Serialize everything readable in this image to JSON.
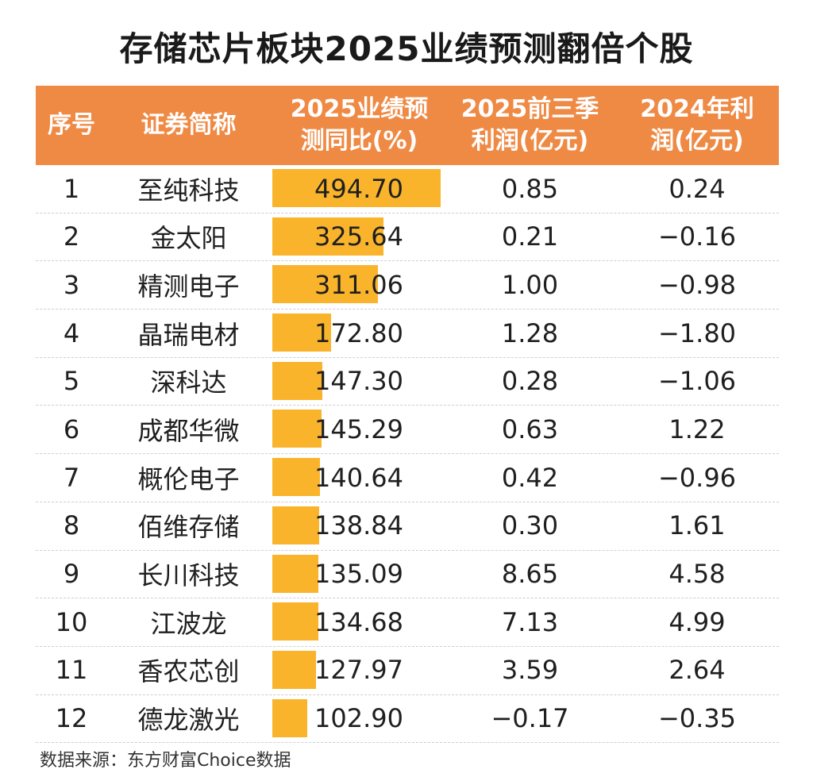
{
  "title": "存储芯片板块2025业绩预测翻倍个股",
  "header": {
    "col1": "序号",
    "col2": "证券简称",
    "col3_line1": "2025业绩预",
    "col3_line2": "测同比(%)",
    "col4_line1": "2025前三季",
    "col4_line2": "利润(亿元)",
    "col5_line1": "2024年利",
    "col5_line2": "润(亿元)"
  },
  "colors": {
    "header_bg": "#ef8a45",
    "bar": "#f9b42c"
  },
  "chart_data": {
    "type": "table",
    "columns": [
      "序号",
      "证券简称",
      "2025业绩预测同比(%)",
      "2025前三季利润(亿元)",
      "2024年利润(亿元)"
    ],
    "rows": [
      {
        "idx": "1",
        "name": "至纯科技",
        "yoy": "494.70",
        "yoy_value": 494.7,
        "q3_2025": "0.85",
        "profit_2024": "0.24"
      },
      {
        "idx": "2",
        "name": "金太阳",
        "yoy": "325.64",
        "yoy_value": 325.64,
        "q3_2025": "0.21",
        "profit_2024": "−0.16"
      },
      {
        "idx": "3",
        "name": "精测电子",
        "yoy": "311.06",
        "yoy_value": 311.06,
        "q3_2025": "1.00",
        "profit_2024": "−0.98"
      },
      {
        "idx": "4",
        "name": "晶瑞电材",
        "yoy": "172.80",
        "yoy_value": 172.8,
        "q3_2025": "1.28",
        "profit_2024": "−1.80"
      },
      {
        "idx": "5",
        "name": "深科达",
        "yoy": "147.30",
        "yoy_value": 147.3,
        "q3_2025": "0.28",
        "profit_2024": "−1.06"
      },
      {
        "idx": "6",
        "name": "成都华微",
        "yoy": "145.29",
        "yoy_value": 145.29,
        "q3_2025": "0.63",
        "profit_2024": "1.22"
      },
      {
        "idx": "7",
        "name": "概伦电子",
        "yoy": "140.64",
        "yoy_value": 140.64,
        "q3_2025": "0.42",
        "profit_2024": "−0.96"
      },
      {
        "idx": "8",
        "name": "佰维存储",
        "yoy": "138.84",
        "yoy_value": 138.84,
        "q3_2025": "0.30",
        "profit_2024": "1.61"
      },
      {
        "idx": "9",
        "name": "长川科技",
        "yoy": "135.09",
        "yoy_value": 135.09,
        "q3_2025": "8.65",
        "profit_2024": "4.58"
      },
      {
        "idx": "10",
        "name": "江波龙",
        "yoy": "134.68",
        "yoy_value": 134.68,
        "q3_2025": "7.13",
        "profit_2024": "4.99"
      },
      {
        "idx": "11",
        "name": "香农芯创",
        "yoy": "127.97",
        "yoy_value": 127.97,
        "q3_2025": "3.59",
        "profit_2024": "2.64"
      },
      {
        "idx": "12",
        "name": "德龙激光",
        "yoy": "102.90",
        "yoy_value": 102.9,
        "q3_2025": "−0.17",
        "profit_2024": "−0.35"
      }
    ],
    "bar_max": 494.7
  },
  "source": "数据来源：东方财富Choice数据"
}
